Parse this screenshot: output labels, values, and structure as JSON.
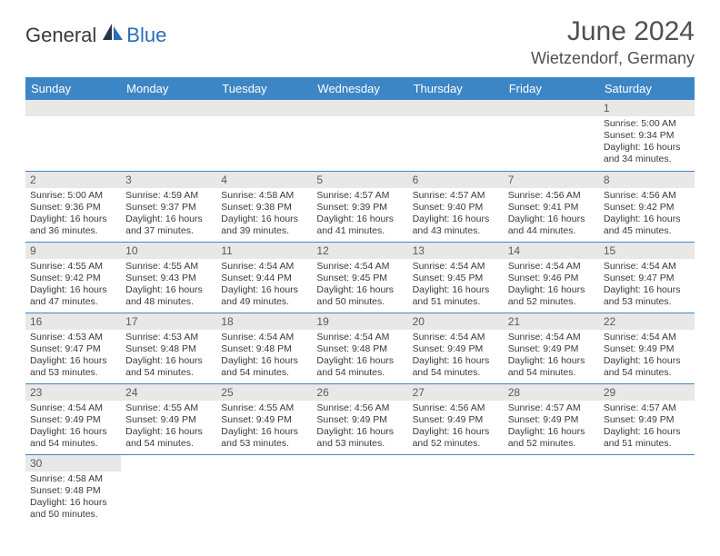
{
  "brand": {
    "part1": "General",
    "part2": "Blue"
  },
  "title": "June 2024",
  "location": "Wietzendorf, Germany",
  "colors": {
    "header_bg": "#3d86c6",
    "header_fg": "#ffffff",
    "daynum_bg": "#e8e8e8",
    "daynum_fg": "#5a5a5a",
    "cell_border": "#3d86c6",
    "text_color": "#3a3a3a",
    "brand_blue": "#2a6db8",
    "title_color": "#505050"
  },
  "day_names": [
    "Sunday",
    "Monday",
    "Tuesday",
    "Wednesday",
    "Thursday",
    "Friday",
    "Saturday"
  ],
  "weeks": [
    [
      null,
      null,
      null,
      null,
      null,
      null,
      {
        "n": "1",
        "sr": "Sunrise: 5:00 AM",
        "ss": "Sunset: 9:34 PM",
        "dl1": "Daylight: 16 hours",
        "dl2": "and 34 minutes."
      }
    ],
    [
      {
        "n": "2",
        "sr": "Sunrise: 5:00 AM",
        "ss": "Sunset: 9:36 PM",
        "dl1": "Daylight: 16 hours",
        "dl2": "and 36 minutes."
      },
      {
        "n": "3",
        "sr": "Sunrise: 4:59 AM",
        "ss": "Sunset: 9:37 PM",
        "dl1": "Daylight: 16 hours",
        "dl2": "and 37 minutes."
      },
      {
        "n": "4",
        "sr": "Sunrise: 4:58 AM",
        "ss": "Sunset: 9:38 PM",
        "dl1": "Daylight: 16 hours",
        "dl2": "and 39 minutes."
      },
      {
        "n": "5",
        "sr": "Sunrise: 4:57 AM",
        "ss": "Sunset: 9:39 PM",
        "dl1": "Daylight: 16 hours",
        "dl2": "and 41 minutes."
      },
      {
        "n": "6",
        "sr": "Sunrise: 4:57 AM",
        "ss": "Sunset: 9:40 PM",
        "dl1": "Daylight: 16 hours",
        "dl2": "and 43 minutes."
      },
      {
        "n": "7",
        "sr": "Sunrise: 4:56 AM",
        "ss": "Sunset: 9:41 PM",
        "dl1": "Daylight: 16 hours",
        "dl2": "and 44 minutes."
      },
      {
        "n": "8",
        "sr": "Sunrise: 4:56 AM",
        "ss": "Sunset: 9:42 PM",
        "dl1": "Daylight: 16 hours",
        "dl2": "and 45 minutes."
      }
    ],
    [
      {
        "n": "9",
        "sr": "Sunrise: 4:55 AM",
        "ss": "Sunset: 9:42 PM",
        "dl1": "Daylight: 16 hours",
        "dl2": "and 47 minutes."
      },
      {
        "n": "10",
        "sr": "Sunrise: 4:55 AM",
        "ss": "Sunset: 9:43 PM",
        "dl1": "Daylight: 16 hours",
        "dl2": "and 48 minutes."
      },
      {
        "n": "11",
        "sr": "Sunrise: 4:54 AM",
        "ss": "Sunset: 9:44 PM",
        "dl1": "Daylight: 16 hours",
        "dl2": "and 49 minutes."
      },
      {
        "n": "12",
        "sr": "Sunrise: 4:54 AM",
        "ss": "Sunset: 9:45 PM",
        "dl1": "Daylight: 16 hours",
        "dl2": "and 50 minutes."
      },
      {
        "n": "13",
        "sr": "Sunrise: 4:54 AM",
        "ss": "Sunset: 9:45 PM",
        "dl1": "Daylight: 16 hours",
        "dl2": "and 51 minutes."
      },
      {
        "n": "14",
        "sr": "Sunrise: 4:54 AM",
        "ss": "Sunset: 9:46 PM",
        "dl1": "Daylight: 16 hours",
        "dl2": "and 52 minutes."
      },
      {
        "n": "15",
        "sr": "Sunrise: 4:54 AM",
        "ss": "Sunset: 9:47 PM",
        "dl1": "Daylight: 16 hours",
        "dl2": "and 53 minutes."
      }
    ],
    [
      {
        "n": "16",
        "sr": "Sunrise: 4:53 AM",
        "ss": "Sunset: 9:47 PM",
        "dl1": "Daylight: 16 hours",
        "dl2": "and 53 minutes."
      },
      {
        "n": "17",
        "sr": "Sunrise: 4:53 AM",
        "ss": "Sunset: 9:48 PM",
        "dl1": "Daylight: 16 hours",
        "dl2": "and 54 minutes."
      },
      {
        "n": "18",
        "sr": "Sunrise: 4:54 AM",
        "ss": "Sunset: 9:48 PM",
        "dl1": "Daylight: 16 hours",
        "dl2": "and 54 minutes."
      },
      {
        "n": "19",
        "sr": "Sunrise: 4:54 AM",
        "ss": "Sunset: 9:48 PM",
        "dl1": "Daylight: 16 hours",
        "dl2": "and 54 minutes."
      },
      {
        "n": "20",
        "sr": "Sunrise: 4:54 AM",
        "ss": "Sunset: 9:49 PM",
        "dl1": "Daylight: 16 hours",
        "dl2": "and 54 minutes."
      },
      {
        "n": "21",
        "sr": "Sunrise: 4:54 AM",
        "ss": "Sunset: 9:49 PM",
        "dl1": "Daylight: 16 hours",
        "dl2": "and 54 minutes."
      },
      {
        "n": "22",
        "sr": "Sunrise: 4:54 AM",
        "ss": "Sunset: 9:49 PM",
        "dl1": "Daylight: 16 hours",
        "dl2": "and 54 minutes."
      }
    ],
    [
      {
        "n": "23",
        "sr": "Sunrise: 4:54 AM",
        "ss": "Sunset: 9:49 PM",
        "dl1": "Daylight: 16 hours",
        "dl2": "and 54 minutes."
      },
      {
        "n": "24",
        "sr": "Sunrise: 4:55 AM",
        "ss": "Sunset: 9:49 PM",
        "dl1": "Daylight: 16 hours",
        "dl2": "and 54 minutes."
      },
      {
        "n": "25",
        "sr": "Sunrise: 4:55 AM",
        "ss": "Sunset: 9:49 PM",
        "dl1": "Daylight: 16 hours",
        "dl2": "and 53 minutes."
      },
      {
        "n": "26",
        "sr": "Sunrise: 4:56 AM",
        "ss": "Sunset: 9:49 PM",
        "dl1": "Daylight: 16 hours",
        "dl2": "and 53 minutes."
      },
      {
        "n": "27",
        "sr": "Sunrise: 4:56 AM",
        "ss": "Sunset: 9:49 PM",
        "dl1": "Daylight: 16 hours",
        "dl2": "and 52 minutes."
      },
      {
        "n": "28",
        "sr": "Sunrise: 4:57 AM",
        "ss": "Sunset: 9:49 PM",
        "dl1": "Daylight: 16 hours",
        "dl2": "and 52 minutes."
      },
      {
        "n": "29",
        "sr": "Sunrise: 4:57 AM",
        "ss": "Sunset: 9:49 PM",
        "dl1": "Daylight: 16 hours",
        "dl2": "and 51 minutes."
      }
    ],
    [
      {
        "n": "30",
        "sr": "Sunrise: 4:58 AM",
        "ss": "Sunset: 9:48 PM",
        "dl1": "Daylight: 16 hours",
        "dl2": "and 50 minutes."
      },
      null,
      null,
      null,
      null,
      null,
      null
    ]
  ]
}
